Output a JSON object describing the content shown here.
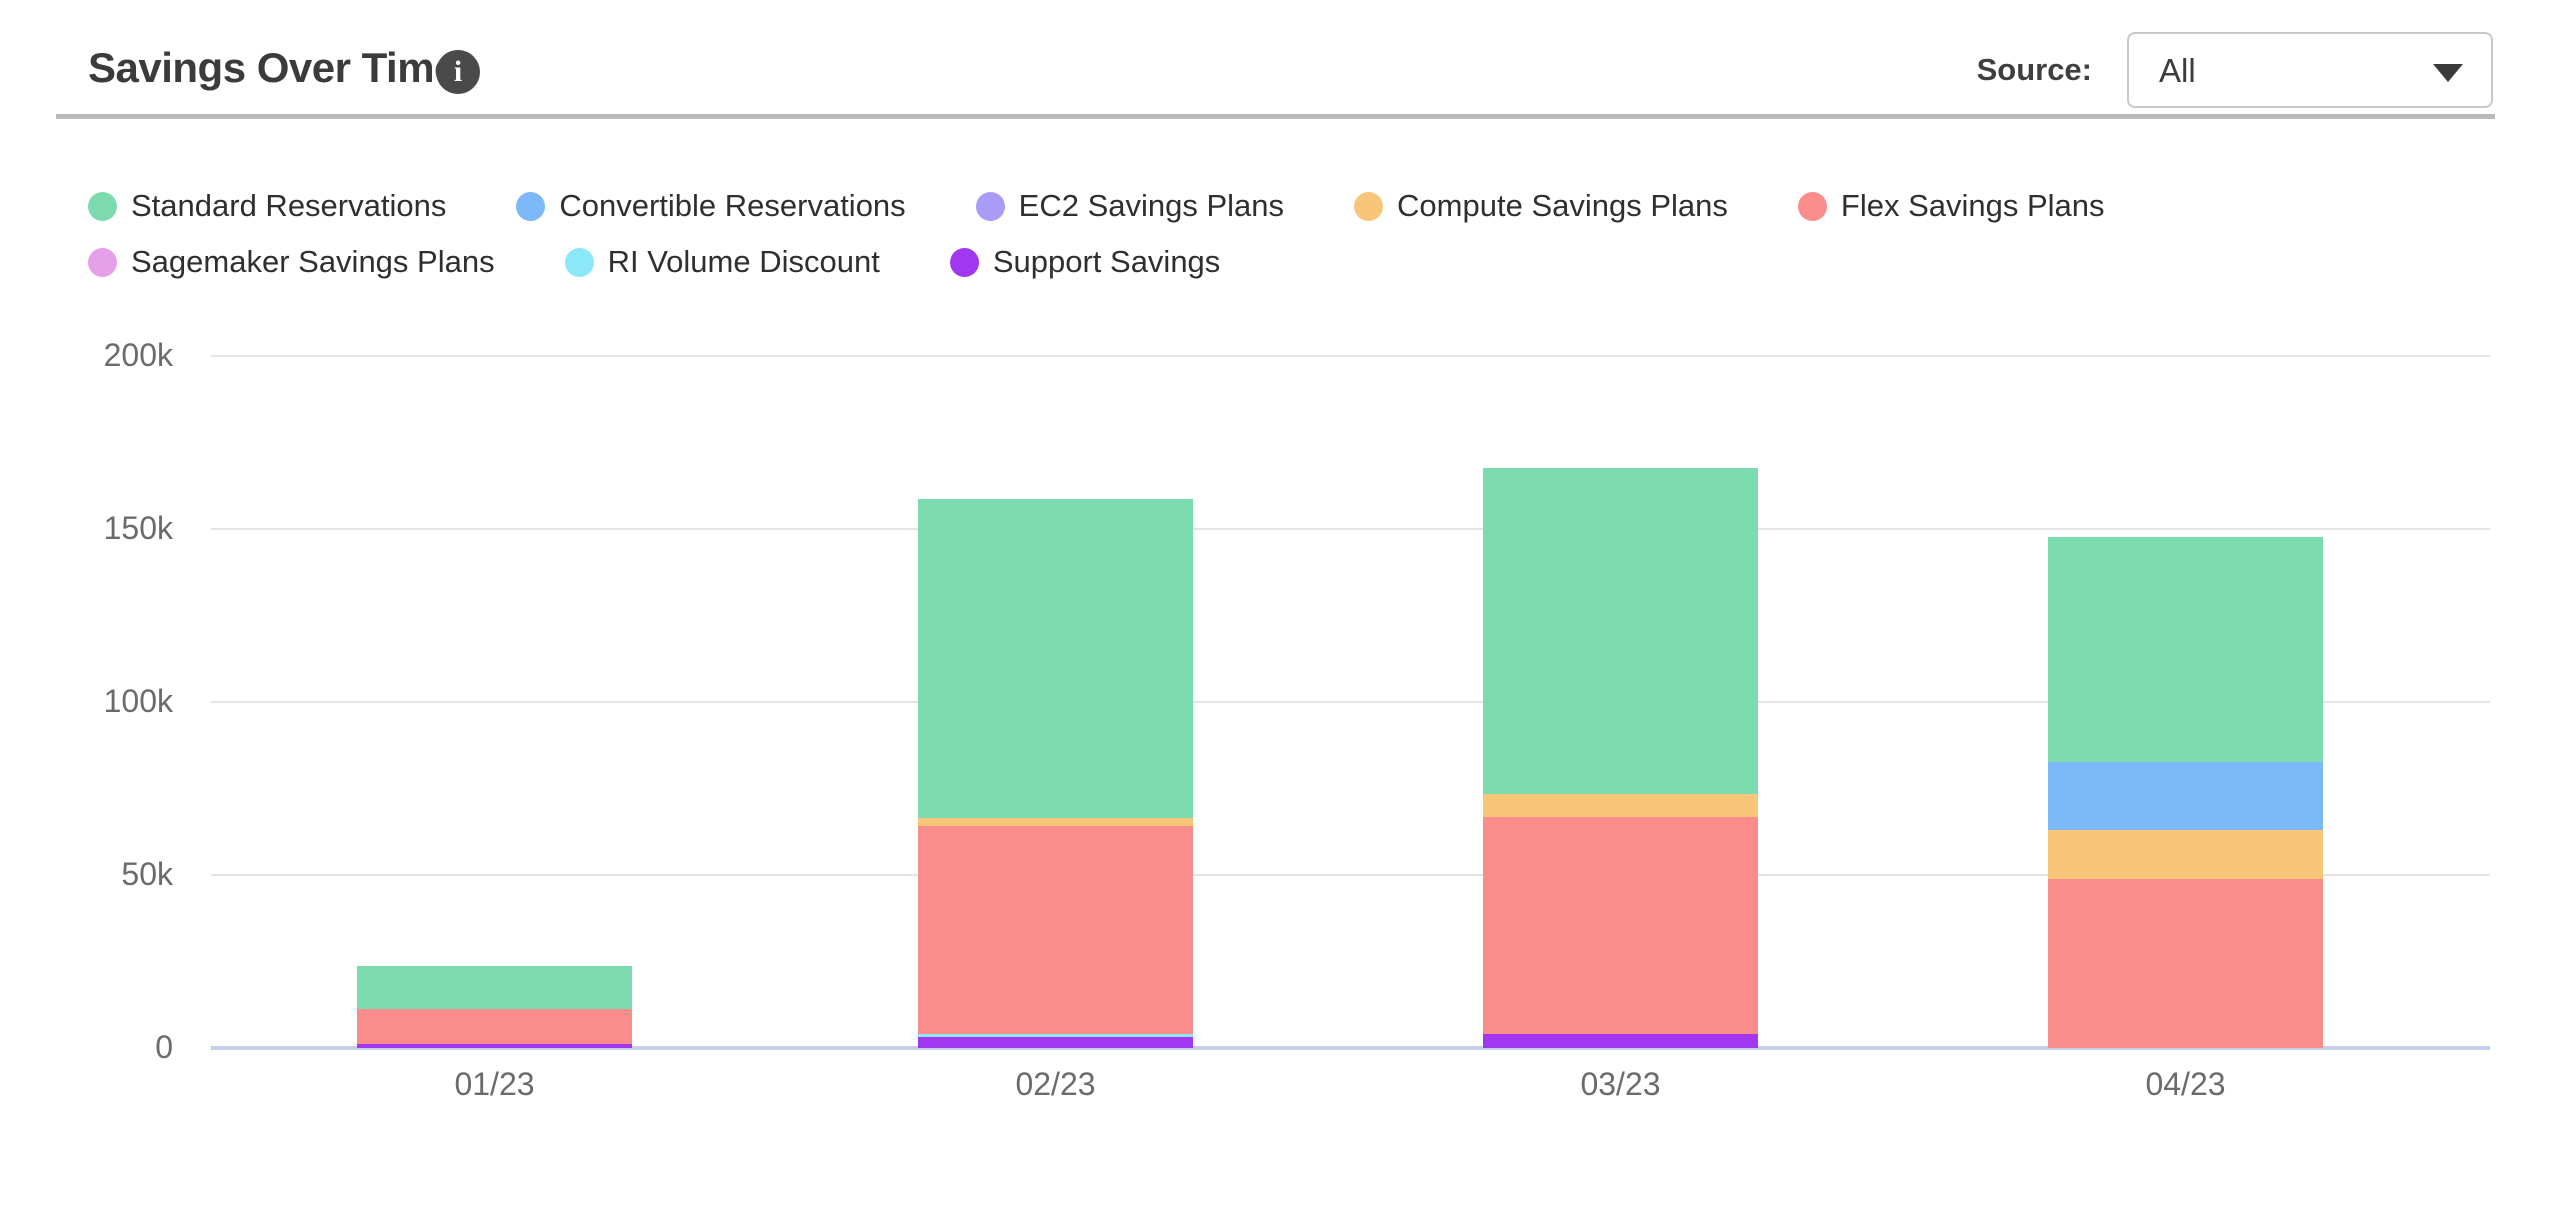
{
  "header": {
    "title": "Savings Over Time",
    "info_glyph": "i",
    "source_label": "Source:",
    "source_value": "All"
  },
  "colors": {
    "divider": "#b9b9b9",
    "axis_baseline": "#c5cde8",
    "gridline": "#e4e4e4",
    "axis_text": "#6b6b6b"
  },
  "chart_data": {
    "type": "bar",
    "stacked": true,
    "title": "Savings Over Time",
    "xlabel": "",
    "ylabel": "",
    "categories": [
      "01/23",
      "02/23",
      "03/23",
      "04/23"
    ],
    "series": [
      {
        "name": "Standard Reservations",
        "color": "#7cdbae",
        "values": [
          12400,
          92000,
          94000,
          65000
        ]
      },
      {
        "name": "Convertible Reservations",
        "color": "#7db8f8",
        "values": [
          0,
          0,
          0,
          19700
        ]
      },
      {
        "name": "EC2 Savings Plans",
        "color": "#a89cf6",
        "values": [
          0,
          0,
          0,
          0
        ]
      },
      {
        "name": "Compute Savings Plans",
        "color": "#f7c678",
        "values": [
          0,
          2500,
          6600,
          14000
        ]
      },
      {
        "name": "Flex Savings Plans",
        "color": "#fa8c8c",
        "values": [
          10200,
          60000,
          62800,
          48900
        ]
      },
      {
        "name": "Sagemaker Savings Plans",
        "color": "#e69fe9",
        "values": [
          0,
          0,
          0,
          0
        ]
      },
      {
        "name": "RI Volume Discount",
        "color": "#8be8f8",
        "values": [
          0,
          900,
          0,
          0
        ]
      },
      {
        "name": "Support Savings",
        "color": "#a137f0",
        "values": [
          1200,
          3200,
          4100,
          0
        ]
      }
    ],
    "stack_order_bottom_to_top": [
      "Support Savings",
      "RI Volume Discount",
      "Sagemaker Savings Plans",
      "Flex Savings Plans",
      "Compute Savings Plans",
      "EC2 Savings Plans",
      "Convertible Reservations",
      "Standard Reservations"
    ],
    "y_ticks": [
      "0",
      "50k",
      "100k",
      "150k",
      "200k"
    ],
    "y_tick_values": [
      0,
      50000,
      100000,
      150000,
      200000
    ],
    "ylim": [
      0,
      200000
    ],
    "grid": true,
    "legend_position": "top"
  }
}
